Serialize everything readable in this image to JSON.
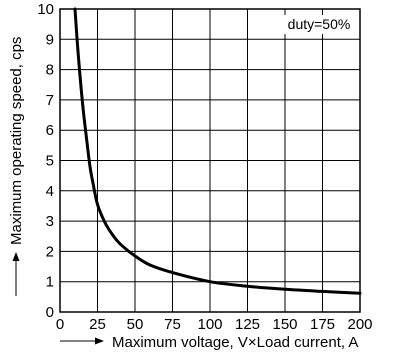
{
  "chart_data": {
    "type": "line",
    "xlabel": "Maximum voltage, V×Load current, A",
    "ylabel": "Maximum operating speed, cps",
    "annotation": "duty=50%",
    "xlim": [
      0,
      200
    ],
    "ylim": [
      0,
      10
    ],
    "xticks": [
      0,
      25,
      50,
      75,
      100,
      125,
      150,
      175,
      200
    ],
    "yticks": [
      0,
      1,
      2,
      3,
      4,
      5,
      6,
      7,
      8,
      9,
      10
    ],
    "grid": true,
    "series": [
      {
        "x": [
          10,
          12,
          15,
          18,
          20,
          22,
          25,
          30,
          35,
          40,
          50,
          60,
          75,
          100,
          125,
          150,
          175,
          200
        ],
        "y": [
          10,
          8.6,
          6.9,
          5.6,
          4.8,
          4.25,
          3.55,
          2.95,
          2.55,
          2.25,
          1.85,
          1.55,
          1.3,
          1.0,
          0.85,
          0.75,
          0.68,
          0.62
        ]
      }
    ]
  }
}
